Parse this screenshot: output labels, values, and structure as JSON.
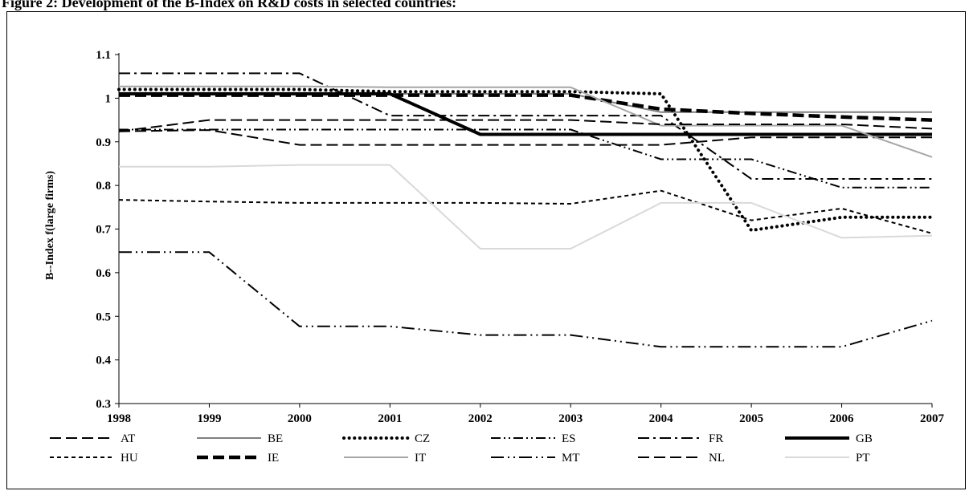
{
  "figure": {
    "title": "Figure 2: Development of the B-Index on R&D costs in selected countries:"
  },
  "chart_data": {
    "type": "line",
    "title": "",
    "xlabel": "",
    "ylabel": "B--Index f(large firms)",
    "x": [
      "1998",
      "1999",
      "2000",
      "2001",
      "2002",
      "2003",
      "2004",
      "2005",
      "2006",
      "2007"
    ],
    "ylim": [
      0.3,
      1.1
    ],
    "yticks": [
      "0.3",
      "0.4",
      "0.5",
      "0.6",
      "0.7",
      "0.8",
      "0.9",
      "1",
      "1.1"
    ],
    "grid": false,
    "legend": "bottom",
    "series": [
      {
        "name": "AT",
        "color": "#000000",
        "dash": "long-dash",
        "values": [
          0.924,
          0.927,
          0.893,
          0.893,
          0.893,
          0.893,
          0.893,
          0.91,
          0.91,
          0.91
        ]
      },
      {
        "name": "BE",
        "color": "#7f7f7f",
        "dash": "solid",
        "values": [
          1.01,
          1.01,
          1.01,
          1.01,
          1.01,
          1.01,
          0.968,
          0.968,
          0.968,
          0.968
        ]
      },
      {
        "name": "CZ",
        "color": "#000000",
        "dash": "dot",
        "values": [
          1.02,
          1.02,
          1.02,
          1.015,
          1.015,
          1.015,
          1.01,
          0.697,
          0.727,
          0.727
        ]
      },
      {
        "name": "ES",
        "color": "#000000",
        "dash": "dash-dot-dot",
        "values": [
          0.928,
          0.928,
          0.928,
          0.928,
          0.928,
          0.928,
          0.86,
          0.86,
          0.795,
          0.795
        ]
      },
      {
        "name": "FR",
        "color": "#000000",
        "dash": "dash-dot",
        "values": [
          1.057,
          1.057,
          1.057,
          0.96,
          0.96,
          0.96,
          0.96,
          0.815,
          0.815,
          0.815
        ]
      },
      {
        "name": "GB",
        "color": "#000000",
        "dash": "solid-thick",
        "values": [
          1.01,
          1.01,
          1.01,
          1.01,
          0.917,
          0.917,
          0.917,
          0.917,
          0.917,
          0.917
        ]
      },
      {
        "name": "HU",
        "color": "#000000",
        "dash": "short-dash",
        "values": [
          0.767,
          0.763,
          0.76,
          0.76,
          0.76,
          0.758,
          0.788,
          0.72,
          0.747,
          0.69
        ]
      },
      {
        "name": "IE",
        "color": "#000000",
        "dash": "long-dash-thick",
        "values": [
          1.007,
          1.007,
          1.007,
          1.007,
          1.007,
          1.007,
          0.975,
          0.965,
          0.957,
          0.95
        ]
      },
      {
        "name": "IT",
        "color": "#a6a6a6",
        "dash": "solid",
        "values": [
          1.027,
          1.027,
          1.027,
          1.025,
          1.025,
          1.025,
          0.937,
          0.937,
          0.937,
          0.865
        ]
      },
      {
        "name": "MT",
        "color": "#000000",
        "dash": "long-dash-dot-dot",
        "values": [
          0.647,
          0.647,
          0.477,
          0.477,
          0.457,
          0.457,
          0.43,
          0.43,
          0.43,
          0.49
        ]
      },
      {
        "name": "NL",
        "color": "#000000",
        "dash": "long-dash",
        "values": [
          0.924,
          0.95,
          0.95,
          0.95,
          0.95,
          0.95,
          0.94,
          0.94,
          0.94,
          0.93
        ]
      },
      {
        "name": "PT",
        "color": "#d9d9d9",
        "dash": "solid",
        "values": [
          0.843,
          0.843,
          0.847,
          0.847,
          0.655,
          0.655,
          0.76,
          0.76,
          0.68,
          0.685
        ]
      }
    ]
  }
}
